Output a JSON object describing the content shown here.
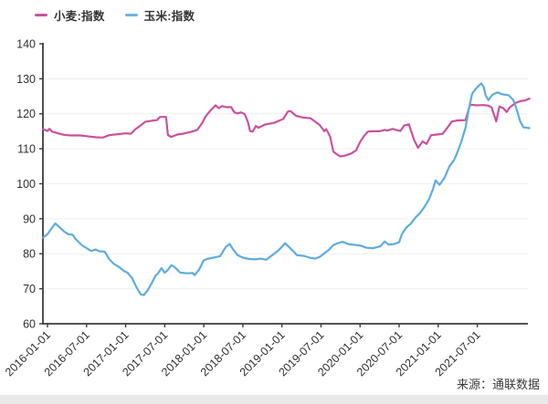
{
  "source_label": "来源：通联数据",
  "legend": {
    "items": [
      {
        "label": "小麦:指数",
        "color": "#c9519e"
      },
      {
        "label": "玉米:指数",
        "color": "#6cb5e4"
      }
    ]
  },
  "chart_data": {
    "type": "line",
    "title": "",
    "xlabel": "",
    "ylabel": "",
    "ylim": [
      60,
      140
    ],
    "yticks": [
      60,
      70,
      80,
      90,
      100,
      110,
      120,
      130,
      140
    ],
    "grid": "horizontal",
    "legend_position": "top-left",
    "x_unit": "months_since_2016-01",
    "xticks": [
      {
        "t": 0,
        "label": "2016-01-01"
      },
      {
        "t": 6,
        "label": "2016-07-01"
      },
      {
        "t": 12,
        "label": "2017-01-01"
      },
      {
        "t": 18,
        "label": "2017-07-01"
      },
      {
        "t": 24,
        "label": "2018-01-01"
      },
      {
        "t": 30,
        "label": "2018-07-01"
      },
      {
        "t": 36,
        "label": "2019-01-01"
      },
      {
        "t": 42,
        "label": "2019-07-01"
      },
      {
        "t": 48,
        "label": "2020-01-01"
      },
      {
        "t": 54,
        "label": "2020-07-01"
      },
      {
        "t": 60,
        "label": "2021-01-01"
      },
      {
        "t": 66,
        "label": "2021-07-01"
      }
    ],
    "series": [
      {
        "name": "小麦:指数",
        "color": "#c9519e",
        "points": [
          [
            -0.7,
            115.6
          ],
          [
            0,
            115.1
          ],
          [
            0.3,
            115.7
          ],
          [
            0.7,
            114.9
          ],
          [
            1.5,
            114.5
          ],
          [
            2.5,
            114.0
          ],
          [
            3.5,
            113.8
          ],
          [
            5,
            113.8
          ],
          [
            6,
            113.6
          ],
          [
            7.4,
            113.3
          ],
          [
            8.5,
            113.2
          ],
          [
            9.5,
            113.9
          ],
          [
            11,
            114.2
          ],
          [
            12,
            114.4
          ],
          [
            12.8,
            114.3
          ],
          [
            13.5,
            115.6
          ],
          [
            14.2,
            116.5
          ],
          [
            15,
            117.7
          ],
          [
            16,
            118.0
          ],
          [
            16.8,
            118.2
          ],
          [
            17.3,
            119.1
          ],
          [
            18.2,
            119.1
          ],
          [
            18.5,
            113.9
          ],
          [
            19,
            113.4
          ],
          [
            20,
            114.1
          ],
          [
            20.8,
            114.3
          ],
          [
            22,
            114.8
          ],
          [
            23,
            115.4
          ],
          [
            23.7,
            117.2
          ],
          [
            24.3,
            119.3
          ],
          [
            25,
            120.9
          ],
          [
            25.8,
            122.4
          ],
          [
            26.3,
            121.6
          ],
          [
            26.8,
            122.2
          ],
          [
            27.4,
            121.9
          ],
          [
            28.2,
            121.9
          ],
          [
            28.7,
            120.4
          ],
          [
            29.2,
            120.1
          ],
          [
            29.7,
            120.4
          ],
          [
            30.3,
            119.9
          ],
          [
            30.8,
            117.5
          ],
          [
            31.1,
            115.1
          ],
          [
            31.5,
            114.9
          ],
          [
            32,
            116.5
          ],
          [
            32.4,
            116.0
          ],
          [
            33.4,
            116.9
          ],
          [
            34.8,
            117.4
          ],
          [
            36.2,
            118.5
          ],
          [
            36.9,
            120.6
          ],
          [
            37.3,
            120.8
          ],
          [
            38.2,
            119.4
          ],
          [
            39,
            119.0
          ],
          [
            40.4,
            118.7
          ],
          [
            41.8,
            116.8
          ],
          [
            42.5,
            115.0
          ],
          [
            42.8,
            115.6
          ],
          [
            43.4,
            113.5
          ],
          [
            43.9,
            109.2
          ],
          [
            44.6,
            108.2
          ],
          [
            45,
            107.8
          ],
          [
            45.8,
            108.1
          ],
          [
            46.7,
            108.7
          ],
          [
            47.4,
            109.6
          ],
          [
            48,
            111.9
          ],
          [
            48.6,
            113.6
          ],
          [
            49.2,
            114.9
          ],
          [
            50,
            115.0
          ],
          [
            51,
            115.0
          ],
          [
            51.8,
            115.4
          ],
          [
            52.2,
            115.2
          ],
          [
            53,
            115.7
          ],
          [
            53.5,
            115.4
          ],
          [
            54.2,
            115.1
          ],
          [
            54.8,
            116.7
          ],
          [
            55.5,
            117.0
          ],
          [
            56.3,
            112.5
          ],
          [
            56.9,
            110.3
          ],
          [
            57.6,
            112.1
          ],
          [
            58.2,
            111.4
          ],
          [
            58.9,
            113.9
          ],
          [
            60,
            114.1
          ],
          [
            60.7,
            114.3
          ],
          [
            61.4,
            116.0
          ],
          [
            62.1,
            117.8
          ],
          [
            63,
            118.1
          ],
          [
            64.2,
            118.2
          ],
          [
            64.9,
            122.6
          ],
          [
            66,
            122.4
          ],
          [
            67,
            122.5
          ],
          [
            67.7,
            122.3
          ],
          [
            68.2,
            121.8
          ],
          [
            68.9,
            117.8
          ],
          [
            69.4,
            122.1
          ],
          [
            70,
            121.6
          ],
          [
            70.5,
            120.5
          ],
          [
            71,
            121.8
          ],
          [
            71.9,
            123.1
          ],
          [
            72.6,
            123.6
          ],
          [
            73.3,
            123.8
          ],
          [
            74,
            124.3
          ]
        ]
      },
      {
        "name": "玉米:指数",
        "color": "#5facde",
        "points": [
          [
            -0.7,
            84.6
          ],
          [
            0,
            85.6
          ],
          [
            0.6,
            87.2
          ],
          [
            1.2,
            88.7
          ],
          [
            2,
            87.3
          ],
          [
            2.6,
            86.3
          ],
          [
            3.2,
            85.6
          ],
          [
            3.9,
            85.4
          ],
          [
            4.3,
            84.2
          ],
          [
            5.3,
            82.4
          ],
          [
            6,
            81.6
          ],
          [
            6.7,
            80.8
          ],
          [
            7.4,
            81.2
          ],
          [
            8,
            80.7
          ],
          [
            8.8,
            80.6
          ],
          [
            9.5,
            78.4
          ],
          [
            10.2,
            77.1
          ],
          [
            10.9,
            76.3
          ],
          [
            11.8,
            75.0
          ],
          [
            12.3,
            74.6
          ],
          [
            13,
            73.0
          ],
          [
            13.7,
            70.3
          ],
          [
            14.3,
            68.4
          ],
          [
            14.8,
            68.2
          ],
          [
            15.4,
            69.6
          ],
          [
            16,
            71.6
          ],
          [
            16.6,
            73.8
          ],
          [
            16.9,
            74.2
          ],
          [
            17.5,
            75.9
          ],
          [
            18,
            74.6
          ],
          [
            18.4,
            75.2
          ],
          [
            19,
            76.7
          ],
          [
            19.4,
            76.4
          ],
          [
            20.4,
            74.6
          ],
          [
            21.5,
            74.4
          ],
          [
            22.3,
            74.5
          ],
          [
            22.6,
            73.9
          ],
          [
            23.3,
            75.5
          ],
          [
            24,
            78.1
          ],
          [
            24.5,
            78.5
          ],
          [
            25.5,
            78.9
          ],
          [
            26.5,
            79.3
          ],
          [
            27.4,
            82.0
          ],
          [
            28,
            82.8
          ],
          [
            28.4,
            81.5
          ],
          [
            29.2,
            79.6
          ],
          [
            30,
            78.9
          ],
          [
            31,
            78.5
          ],
          [
            32,
            78.4
          ],
          [
            32.7,
            78.6
          ],
          [
            33.6,
            78.3
          ],
          [
            34.8,
            80.0
          ],
          [
            35.5,
            81.0
          ],
          [
            36.5,
            83.0
          ],
          [
            37.6,
            81.0
          ],
          [
            38.3,
            79.6
          ],
          [
            39.4,
            79.4
          ],
          [
            40.2,
            78.9
          ],
          [
            41.1,
            78.6
          ],
          [
            41.8,
            79.1
          ],
          [
            43.2,
            81.1
          ],
          [
            43.9,
            82.5
          ],
          [
            44.6,
            83.0
          ],
          [
            45.3,
            83.4
          ],
          [
            46.3,
            82.7
          ],
          [
            47.4,
            82.5
          ],
          [
            48.1,
            82.3
          ],
          [
            49,
            81.7
          ],
          [
            50,
            81.6
          ],
          [
            51.1,
            82.1
          ],
          [
            51.8,
            83.5
          ],
          [
            52.4,
            82.6
          ],
          [
            53.3,
            82.8
          ],
          [
            54,
            83.3
          ],
          [
            54.4,
            85.5
          ],
          [
            55.1,
            87.5
          ],
          [
            55.8,
            88.6
          ],
          [
            56.5,
            90.3
          ],
          [
            57.2,
            91.6
          ],
          [
            57.9,
            93.4
          ],
          [
            58.6,
            95.6
          ],
          [
            59.2,
            98.5
          ],
          [
            59.6,
            101.0
          ],
          [
            60.2,
            99.7
          ],
          [
            61,
            101.8
          ],
          [
            61.7,
            104.9
          ],
          [
            62.4,
            106.7
          ],
          [
            62.8,
            108.3
          ],
          [
            63.5,
            111.8
          ],
          [
            64.2,
            116.0
          ],
          [
            64.7,
            121.3
          ],
          [
            65.2,
            125.7
          ],
          [
            65.8,
            127.2
          ],
          [
            66.2,
            128.0
          ],
          [
            66.6,
            128.7
          ],
          [
            67,
            127.6
          ],
          [
            67.3,
            125.2
          ],
          [
            67.7,
            123.9
          ],
          [
            68.3,
            125.4
          ],
          [
            69.1,
            126.1
          ],
          [
            69.8,
            125.6
          ],
          [
            70.8,
            125.3
          ],
          [
            71.5,
            124.0
          ],
          [
            71.9,
            122.2
          ],
          [
            72.6,
            117.8
          ],
          [
            73.1,
            116.1
          ],
          [
            74,
            115.9
          ]
        ]
      }
    ]
  }
}
